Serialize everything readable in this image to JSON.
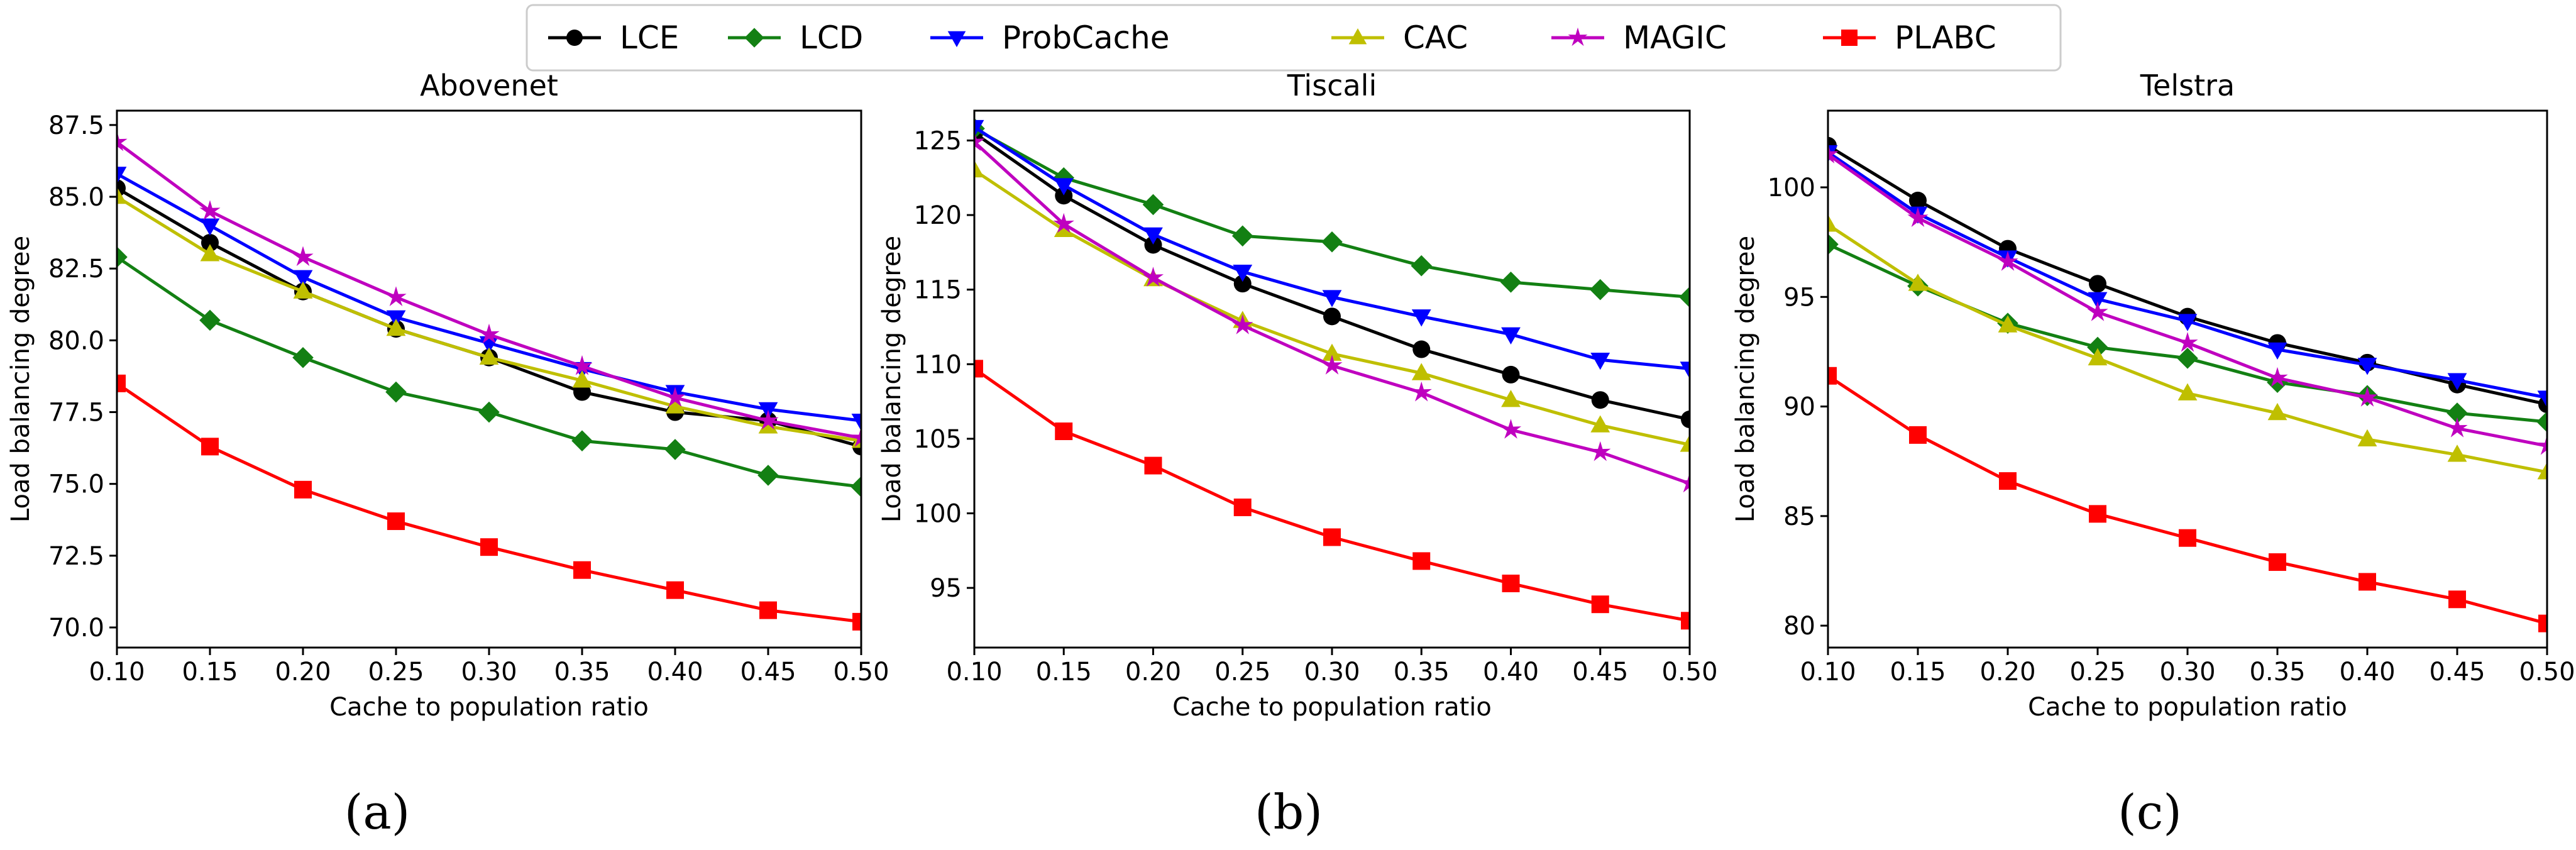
{
  "legend": [
    {
      "name": "LCE",
      "color": "#000000",
      "marker": "circle"
    },
    {
      "name": "LCD",
      "color": "#138013",
      "marker": "diamond"
    },
    {
      "name": "ProbCache",
      "color": "#0000ff",
      "marker": "triangle-down"
    },
    {
      "name": "CAC",
      "color": "#bfbf00",
      "marker": "triangle-up"
    },
    {
      "name": "MAGIC",
      "color": "#bf00bf",
      "marker": "star"
    },
    {
      "name": "PLABC",
      "color": "#ff0000",
      "marker": "square"
    }
  ],
  "chart_data": [
    {
      "type": "line",
      "title": "Abovenet",
      "xlabel": "Cache to population ratio",
      "ylabel": "Load balancing degree",
      "panel_label": "(a)",
      "xlim": [
        0.1,
        0.5
      ],
      "ylim": [
        69.3,
        88.0
      ],
      "x": [
        0.1,
        0.15,
        0.2,
        0.25,
        0.3,
        0.35,
        0.4,
        0.45,
        0.5
      ],
      "xticks": [
        "0.10",
        "0.15",
        "0.20",
        "0.25",
        "0.30",
        "0.35",
        "0.40",
        "0.45",
        "0.50"
      ],
      "yticks": [
        {
          "v": 70.0,
          "label": "70.0"
        },
        {
          "v": 72.5,
          "label": "72.5"
        },
        {
          "v": 75.0,
          "label": "75.0"
        },
        {
          "v": 77.5,
          "label": "77.5"
        },
        {
          "v": 80.0,
          "label": "80.0"
        },
        {
          "v": 82.5,
          "label": "82.5"
        },
        {
          "v": 85.0,
          "label": "85.0"
        },
        {
          "v": 87.5,
          "label": "87.5"
        }
      ],
      "series": [
        {
          "name": "LCE",
          "values": [
            85.3,
            83.4,
            81.7,
            80.4,
            79.4,
            78.2,
            77.5,
            77.2,
            76.3
          ]
        },
        {
          "name": "LCD",
          "values": [
            82.9,
            80.7,
            79.4,
            78.2,
            77.5,
            76.5,
            76.2,
            75.3,
            74.9
          ]
        },
        {
          "name": "ProbCache",
          "values": [
            85.8,
            84.0,
            82.2,
            80.8,
            79.9,
            79.0,
            78.2,
            77.6,
            77.2
          ]
        },
        {
          "name": "CAC",
          "values": [
            85.0,
            83.0,
            81.7,
            80.4,
            79.4,
            78.6,
            77.7,
            77.0,
            76.5
          ]
        },
        {
          "name": "MAGIC",
          "values": [
            86.9,
            84.5,
            82.9,
            81.5,
            80.2,
            79.1,
            78.0,
            77.2,
            76.6
          ]
        },
        {
          "name": "PLABC",
          "values": [
            78.5,
            76.3,
            74.8,
            73.7,
            72.8,
            72.0,
            71.3,
            70.6,
            70.2
          ]
        }
      ]
    },
    {
      "type": "line",
      "title": "Tiscali",
      "xlabel": "Cache to population ratio",
      "ylabel": "Load balancing degree",
      "panel_label": "(b)",
      "xlim": [
        0.1,
        0.5
      ],
      "ylim": [
        91.0,
        127.0
      ],
      "x": [
        0.1,
        0.15,
        0.2,
        0.25,
        0.3,
        0.35,
        0.4,
        0.45,
        0.5
      ],
      "xticks": [
        "0.10",
        "0.15",
        "0.20",
        "0.25",
        "0.30",
        "0.35",
        "0.40",
        "0.45",
        "0.50"
      ],
      "yticks": [
        {
          "v": 95,
          "label": "95"
        },
        {
          "v": 100,
          "label": "100"
        },
        {
          "v": 105,
          "label": "105"
        },
        {
          "v": 110,
          "label": "110"
        },
        {
          "v": 115,
          "label": "115"
        },
        {
          "v": 120,
          "label": "120"
        },
        {
          "v": 125,
          "label": "125"
        }
      ],
      "series": [
        {
          "name": "LCE",
          "values": [
            125.5,
            121.3,
            118.0,
            115.4,
            113.2,
            111.0,
            109.3,
            107.6,
            106.3
          ]
        },
        {
          "name": "LCD",
          "values": [
            125.8,
            122.5,
            120.7,
            118.6,
            118.2,
            116.6,
            115.5,
            115.0,
            114.5
          ]
        },
        {
          "name": "ProbCache",
          "values": [
            125.9,
            122.0,
            118.7,
            116.2,
            114.5,
            113.2,
            112.0,
            110.3,
            109.7
          ]
        },
        {
          "name": "CAC",
          "values": [
            123.0,
            119.0,
            115.7,
            112.9,
            110.7,
            109.4,
            107.6,
            105.9,
            104.6
          ]
        },
        {
          "name": "MAGIC",
          "values": [
            124.9,
            119.4,
            115.8,
            112.6,
            109.9,
            108.1,
            105.6,
            104.1,
            102.0
          ]
        },
        {
          "name": "PLABC",
          "values": [
            109.7,
            105.5,
            103.2,
            100.4,
            98.4,
            96.8,
            95.3,
            93.9,
            92.8
          ]
        }
      ]
    },
    {
      "type": "line",
      "title": "Telstra",
      "xlabel": "Cache to population ratio",
      "ylabel": "Load balancing degree",
      "panel_label": "(c)",
      "xlim": [
        0.1,
        0.5
      ],
      "ylim": [
        79.0,
        103.5
      ],
      "x": [
        0.1,
        0.15,
        0.2,
        0.25,
        0.3,
        0.35,
        0.4,
        0.45,
        0.5
      ],
      "xticks": [
        "0.10",
        "0.15",
        "0.20",
        "0.25",
        "0.30",
        "0.35",
        "0.40",
        "0.45",
        "0.50"
      ],
      "yticks": [
        {
          "v": 80,
          "label": "80"
        },
        {
          "v": 85,
          "label": "85"
        },
        {
          "v": 90,
          "label": "90"
        },
        {
          "v": 95,
          "label": "95"
        },
        {
          "v": 100,
          "label": "100"
        }
      ],
      "series": [
        {
          "name": "LCE",
          "values": [
            101.9,
            99.4,
            97.2,
            95.6,
            94.1,
            92.9,
            92.0,
            91.0,
            90.1
          ]
        },
        {
          "name": "LCD",
          "values": [
            97.4,
            95.5,
            93.8,
            92.7,
            92.2,
            91.1,
            90.5,
            89.7,
            89.3
          ]
        },
        {
          "name": "ProbCache",
          "values": [
            101.6,
            98.8,
            96.8,
            94.9,
            93.9,
            92.6,
            91.9,
            91.2,
            90.4
          ]
        },
        {
          "name": "CAC",
          "values": [
            98.3,
            95.6,
            93.7,
            92.2,
            90.6,
            89.7,
            88.5,
            87.8,
            87.0
          ]
        },
        {
          "name": "MAGIC",
          "values": [
            101.5,
            98.6,
            96.6,
            94.3,
            92.9,
            91.3,
            90.4,
            89.0,
            88.2
          ]
        },
        {
          "name": "PLABC",
          "values": [
            91.4,
            88.7,
            86.6,
            85.1,
            84.0,
            82.9,
            82.0,
            81.2,
            80.1
          ]
        }
      ]
    }
  ]
}
